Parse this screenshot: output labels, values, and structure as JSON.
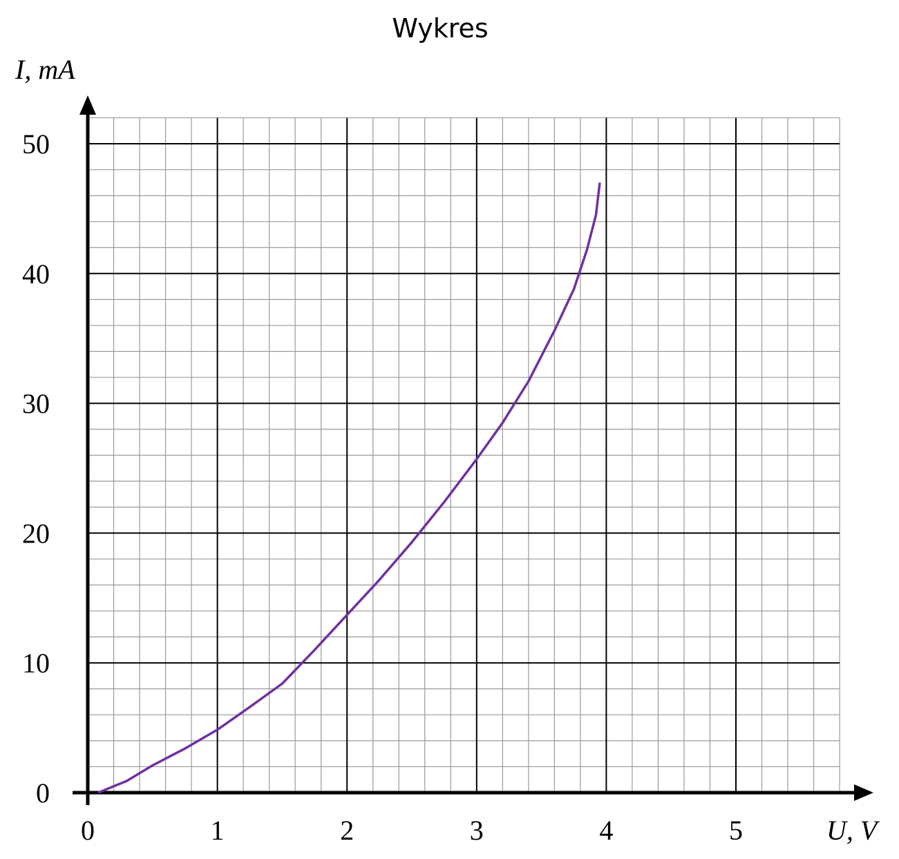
{
  "chart_data": {
    "type": "line",
    "title": "Wykres",
    "x_label": "U, V",
    "y_label": "I, mA",
    "xlim": [
      0,
      5.8
    ],
    "ylim": [
      0,
      52
    ],
    "xticks": [
      0,
      1,
      2,
      3,
      4,
      5
    ],
    "yticks": [
      0,
      10,
      20,
      30,
      40,
      50
    ],
    "grid": true,
    "series": [
      {
        "color": "#7030a0",
        "x": [
          0.08,
          0.3,
          0.5,
          0.75,
          1,
          1.25,
          1.5,
          1.75,
          2,
          2.25,
          2.5,
          2.75,
          3,
          3.2,
          3.4,
          3.6,
          3.75,
          3.85,
          3.92,
          3.95
        ],
        "values": [
          0,
          0.9,
          2.1,
          3.4,
          4.85,
          6.6,
          8.4,
          11,
          13.7,
          16.4,
          19.3,
          22.4,
          25.7,
          28.5,
          31.7,
          35.6,
          38.8,
          41.8,
          44.5,
          47
        ]
      }
    ]
  }
}
